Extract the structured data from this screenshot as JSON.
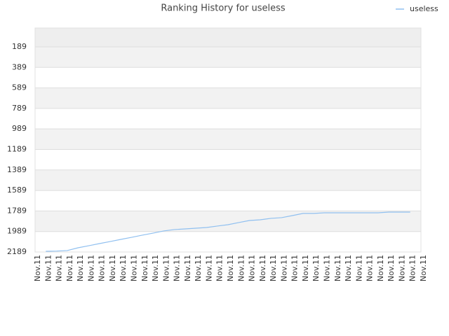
{
  "chart_data": {
    "type": "line",
    "title": "Ranking History for useless",
    "categories": [
      "Nov.11",
      "Nov.11",
      "Nov.11",
      "Nov.11",
      "Nov.11",
      "Nov.11",
      "Nov.11",
      "Nov.11",
      "Nov.11",
      "Nov.11",
      "Nov.11",
      "Nov.11",
      "Nov.11",
      "Nov.11",
      "Nov.11",
      "Nov.11",
      "Nov.11",
      "Nov.11",
      "Nov.11",
      "Nov.11",
      "Nov.11",
      "Nov.11",
      "Nov.11",
      "Nov.11",
      "Nov.11",
      "Nov.11",
      "Nov.11",
      "Nov.11",
      "Nov.11",
      "Nov.11",
      "Nov.11",
      "Nov.11",
      "Nov.11",
      "Nov.11",
      "Nov.11",
      "Nov.11",
      "Nov.11"
    ],
    "series": [
      {
        "name": "useless",
        "color": "#90c0f0",
        "values": [
          null,
          2182,
          2180,
          2175,
          2148,
          2128,
          2107,
          2087,
          2066,
          2046,
          2025,
          2005,
          1984,
          1970,
          1964,
          1957,
          1950,
          1936,
          1923,
          1902,
          1882,
          1875,
          1861,
          1854,
          1834,
          1813,
          1813,
          1807,
          1807,
          1807,
          1807,
          1807,
          1807,
          1800,
          1800,
          1800,
          null
        ]
      }
    ],
    "ylim": [
      2189,
      5
    ],
    "yticks": [
      189,
      389,
      589,
      789,
      989,
      1189,
      1389,
      1589,
      1789,
      1989,
      2189
    ],
    "grid": true,
    "legend": "top-right"
  }
}
